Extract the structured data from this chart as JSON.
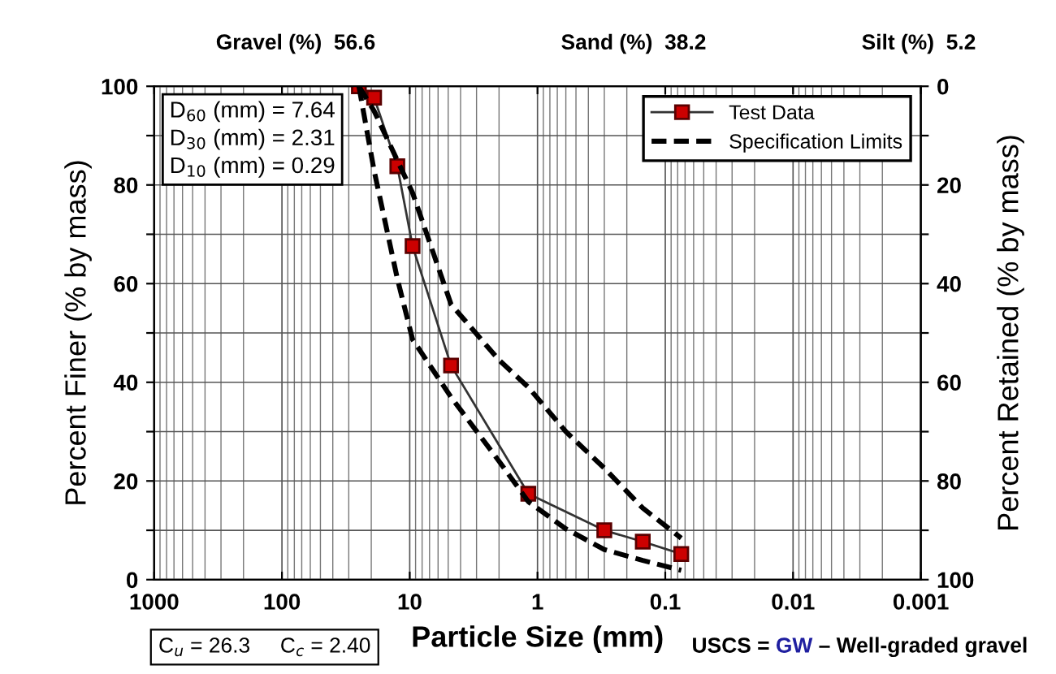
{
  "chart_data": {
    "type": "line",
    "xlabel": "Particle Size (mm)",
    "ylabel": "Percent Finer (% by mass)",
    "y2label": "Percent Retained (% by mass)",
    "log": "x",
    "xlim": [
      1000,
      0.001
    ],
    "xticks": [
      1000,
      100,
      10,
      1,
      0.1,
      0.01,
      0.001
    ],
    "ylim": [
      0,
      100
    ],
    "yticks": [
      0,
      {
        "value": 10,
        "label": null
      },
      20,
      {
        "value": 30,
        "label": null
      },
      40,
      {
        "value": 50,
        "label": null
      },
      60,
      {
        "value": 70,
        "label": null
      },
      80,
      {
        "value": 90,
        "label": null
      },
      100
    ],
    "y2lim": [
      100,
      0
    ],
    "y2ticks": [
      100,
      {
        "value": 90,
        "label": null
      },
      80,
      {
        "value": 70,
        "label": null
      },
      60,
      {
        "value": 50,
        "label": null
      },
      40,
      {
        "value": 30,
        "label": null
      },
      20,
      {
        "value": 10,
        "label": null
      },
      0
    ],
    "grid": true,
    "legend": "top right",
    "series": [
      {
        "name": "Test Data",
        "color": "#cc0000",
        "marker": "square",
        "line_style": "solid",
        "x": [
          25,
          19,
          12.5,
          9.5,
          4.75,
          1.18,
          0.3,
          0.15,
          0.075
        ],
        "values": [
          100,
          97.7,
          83.8,
          67.6,
          43.4,
          17.4,
          10,
          7.7,
          5.2
        ]
      },
      {
        "name": "Specification Limits",
        "color": "#000000",
        "marker": "none",
        "line_style": "dashed",
        "x": [
          25,
          19,
          9.5,
          4.75,
          2,
          1.18,
          0.6,
          0.3,
          0.15,
          0.075
        ],
        "values": [
          100,
          95,
          78.4,
          55.8,
          44.5,
          39,
          30,
          22.6,
          14.5,
          8.4
        ]
      },
      {
        "color": "#000000",
        "marker": "none",
        "line_style": "dashed",
        "x": [
          25,
          19,
          12.5,
          9.5,
          4.75,
          2,
          1.18,
          0.6,
          0.3,
          0.15,
          0.075
        ],
        "values": [
          100,
          82.9,
          61,
          48.7,
          37,
          24,
          15.8,
          10.3,
          6.1,
          3.9,
          1.9
        ]
      }
    ],
    "annotations": [
      "Gravel (%)  56.6",
      "Sand (%)  38.2",
      "Silt (%)  5.2",
      "D$_{60}$ (mm) = 7.64\nD$_{30}$ (mm) = 2.31\nD$_{10}$ (mm) = 0.29",
      "C$_{u}$ = 26.3     C$_{c}$ = 2.40",
      "USCS = ",
      "GW",
      "– Well-graded gravel"
    ]
  }
}
